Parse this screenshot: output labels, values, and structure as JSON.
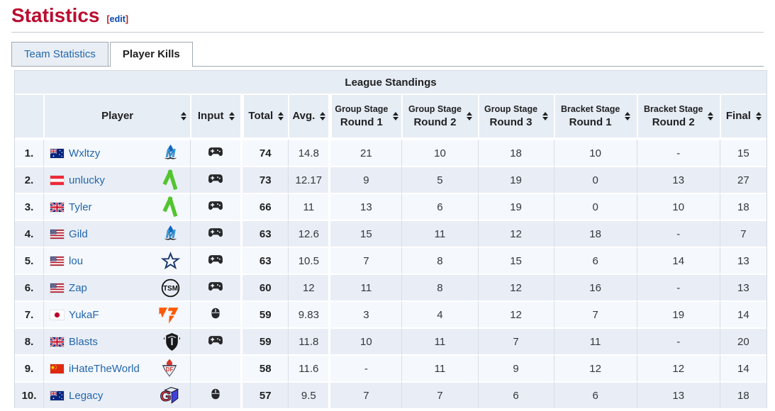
{
  "page": {
    "title": "Statistics",
    "edit_label": "edit"
  },
  "tabs": [
    {
      "label": "Team Statistics",
      "active": false
    },
    {
      "label": "Player Kills",
      "active": true
    }
  ],
  "colors": {
    "heading_red": "#ba0c2f",
    "link_blue": "#2367ac",
    "header_bg": "#e7edf5",
    "row_odd": "#f5f8fc",
    "row_even": "#e9eef6",
    "fnatic_orange": "#ff5900",
    "green_logo": "#53c42f"
  },
  "table": {
    "title": "League Standings",
    "columns": [
      {
        "key": "rank",
        "label": "",
        "sortable": false
      },
      {
        "key": "player",
        "label": "Player",
        "sortable": true
      },
      {
        "key": "input",
        "label": "Input",
        "sortable": true
      },
      {
        "key": "total",
        "label": "Total",
        "sortable": true
      },
      {
        "key": "avg",
        "label": "Avg.",
        "sortable": true
      },
      {
        "key": "gs1",
        "label": "Group Stage",
        "sublabel": "Round 1",
        "sortable": true
      },
      {
        "key": "gs2",
        "label": "Group Stage",
        "sublabel": "Round 2",
        "sortable": true
      },
      {
        "key": "gs3",
        "label": "Group Stage",
        "sublabel": "Round 3",
        "sortable": true
      },
      {
        "key": "bs1",
        "label": "Bracket Stage",
        "sublabel": "Round 1",
        "sortable": true
      },
      {
        "key": "bs2",
        "label": "Bracket Stage",
        "sublabel": "Round 2",
        "sortable": true
      },
      {
        "key": "final",
        "label": "Final",
        "sortable": true
      }
    ],
    "rows": [
      {
        "rank": "1.",
        "flag": "flag-australia-icon",
        "player": "Wxltzy",
        "team_icon": "moist-logo-icon",
        "input_icon": "controller-icon",
        "total": "74",
        "avg": "14.8",
        "cells": [
          "21",
          "10",
          "18",
          "10",
          "-",
          "15"
        ]
      },
      {
        "rank": "2.",
        "flag": "flag-austria-icon",
        "player": "unlucky",
        "team_icon": "green-arrow-logo-icon",
        "input_icon": "controller-icon",
        "total": "73",
        "avg": "12.17",
        "cells": [
          "9",
          "5",
          "19",
          "0",
          "13",
          "27"
        ]
      },
      {
        "rank": "3.",
        "flag": "flag-uk-icon",
        "player": "Tyler",
        "team_icon": "green-arrow-logo-icon",
        "input_icon": "controller-icon",
        "total": "66",
        "avg": "11",
        "cells": [
          "13",
          "6",
          "19",
          "0",
          "10",
          "18"
        ]
      },
      {
        "rank": "4.",
        "flag": "flag-usa-icon",
        "player": "Gild",
        "team_icon": "moist-logo-icon",
        "input_icon": "controller-icon",
        "total": "63",
        "avg": "12.6",
        "cells": [
          "15",
          "11",
          "12",
          "18",
          "-",
          "7"
        ]
      },
      {
        "rank": "5.",
        "flag": "flag-usa-icon",
        "player": "lou",
        "team_icon": "star-logo-icon",
        "input_icon": "controller-icon",
        "total": "63",
        "avg": "10.5",
        "cells": [
          "7",
          "8",
          "15",
          "6",
          "14",
          "13"
        ]
      },
      {
        "rank": "6.",
        "flag": "flag-usa-icon",
        "player": "Zap",
        "team_icon": "tsm-logo-icon",
        "input_icon": "controller-icon",
        "total": "60",
        "avg": "12",
        "cells": [
          "11",
          "8",
          "12",
          "16",
          "-",
          "13"
        ]
      },
      {
        "rank": "7.",
        "flag": "flag-japan-icon",
        "player": "YukaF",
        "team_icon": "fnatic-logo-icon",
        "input_icon": "mouse-icon",
        "total": "59",
        "avg": "9.83",
        "cells": [
          "3",
          "4",
          "12",
          "7",
          "19",
          "14"
        ]
      },
      {
        "rank": "8.",
        "flag": "flag-uk-icon",
        "player": "Blasts",
        "team_icon": "guild-logo-icon",
        "input_icon": "controller-icon",
        "total": "59",
        "avg": "11.8",
        "cells": [
          "10",
          "11",
          "7",
          "11",
          "-",
          "20"
        ]
      },
      {
        "rank": "9.",
        "flag": "flag-china-icon",
        "player": "iHateTheWorld",
        "team_icon": "flame-shield-logo-icon",
        "input_icon": "",
        "total": "58",
        "avg": "11.6",
        "cells": [
          "-",
          "11",
          "9",
          "12",
          "12",
          "14"
        ]
      },
      {
        "rank": "10.",
        "flag": "flag-australia-icon",
        "player": "Legacy",
        "team_icon": "gcube-logo-icon",
        "input_icon": "mouse-icon",
        "total": "57",
        "avg": "9.5",
        "cells": [
          "7",
          "7",
          "6",
          "6",
          "13",
          "18"
        ]
      }
    ]
  }
}
